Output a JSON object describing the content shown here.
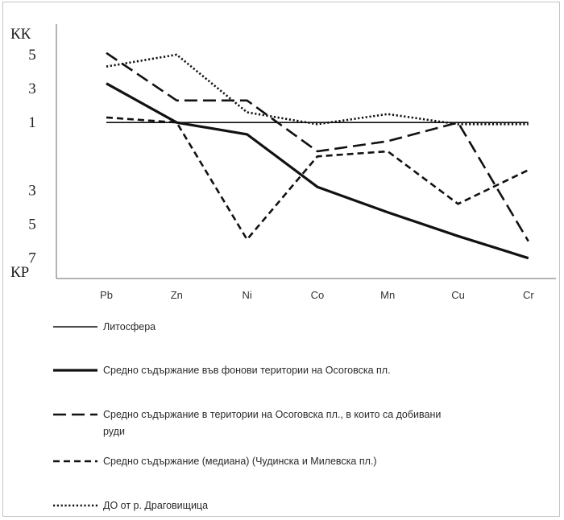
{
  "chart_data": {
    "type": "line",
    "x": [
      "Pb",
      "Zn",
      "Ni",
      "Co",
      "Mn",
      "Cu",
      "Cr"
    ],
    "y_axis_labels": {
      "top": "КК",
      "bottom": "КР"
    },
    "y_ticks": [
      {
        "label": "5",
        "value": 5
      },
      {
        "label": "3",
        "value": 3
      },
      {
        "label": "1",
        "value": 1
      },
      {
        "label": "3",
        "value": -3
      },
      {
        "label": "5",
        "value": -5
      },
      {
        "label": "7",
        "value": -7
      }
    ],
    "scale_note": "Upper half is КК (concentration coefficient), lower half is КР (dispersion coefficient); tick values are signed: positive = КК, negative = КР, 1 = reference",
    "ylim": [
      -8.2,
      6.8
    ],
    "grid": false,
    "legend_position": "bottom",
    "series": [
      {
        "name": "Литосфера",
        "style": "solid-thin",
        "values": [
          1,
          1,
          1,
          1,
          1,
          1,
          1
        ]
      },
      {
        "name": "Средно съдържание във фонови територии на Осоговска пл.",
        "style": "solid-thick",
        "values": [
          3.3,
          1.0,
          0.3,
          -2.8,
          -4.3,
          -5.7,
          -7.0
        ]
      },
      {
        "name": "Средно съдържание в територии на Осоговска пл., в които са добивани руди",
        "style": "dashed-long",
        "values": [
          5.1,
          2.3,
          2.3,
          -0.7,
          -0.1,
          1.0,
          -6.0
        ]
      },
      {
        "name": "Средно съдържание (медиана) (Чудинска и Милевска пл.)",
        "style": "dashed-short",
        "values": [
          1.3,
          1.0,
          -5.9,
          -1.0,
          -0.7,
          -3.8,
          -1.8
        ]
      },
      {
        "name": "ДО от р. Драговищица",
        "style": "dotted",
        "values": [
          4.3,
          5.0,
          1.6,
          0.9,
          1.5,
          0.9,
          0.9
        ]
      }
    ]
  }
}
